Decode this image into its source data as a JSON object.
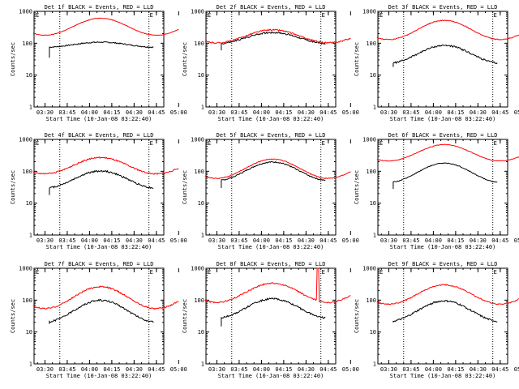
{
  "colors": {
    "events": "#000000",
    "lld": "#ff0000",
    "axis": "#000000",
    "background": "#ffffff"
  },
  "shared": {
    "xlabel": "Start Time (10-Jan-08 03:22:40)",
    "ylabel": "Counts/sec",
    "x_ticks": [
      "03:30",
      "03:45",
      "04:00",
      "04:15",
      "04:30",
      "04:45",
      "05:00"
    ],
    "y_ticks": [
      "1",
      "10",
      "100",
      "1000"
    ],
    "x_range_minutes_after_0330": [
      -7.33,
      80
    ],
    "y_range": [
      1,
      1000
    ],
    "y_scale": "log",
    "marker_text": "E"
  },
  "chart_data": [
    {
      "type": "line",
      "title": "Det 1f BLACK = Events, RED = LLD",
      "corner_marks": [
        "E",
        "E"
      ],
      "dotted_lines_at": [
        "03:40",
        "04:40"
      ],
      "series": [
        {
          "role": "events",
          "start": "03:33",
          "end": "04:43",
          "base": 90,
          "amp": 1.2,
          "phase": 0,
          "start_level": 35,
          "noise": 0.04
        },
        {
          "role": "lld",
          "start": "03:22",
          "end": "05:00",
          "base": 330,
          "amp": 1.85,
          "phase": 0,
          "start_level": 330,
          "noise": 0.02
        }
      ]
    },
    {
      "type": "line",
      "title": "Det 2f BLACK = Events, RED = LLD",
      "corner_marks": [
        "E",
        "E"
      ],
      "dotted_lines_at": [
        "03:40",
        "04:40"
      ],
      "series": [
        {
          "role": "events",
          "start": "03:33",
          "end": "04:43",
          "base": 145,
          "amp": 1.5,
          "phase": 0,
          "start_level": 60,
          "noise": 0.06
        },
        {
          "role": "lld",
          "start": "03:22",
          "end": "05:00",
          "base": 165,
          "amp": 1.6,
          "phase": 0,
          "start_level": 165,
          "noise": 0.05
        }
      ]
    },
    {
      "type": "line",
      "title": "Det 3f BLACK = Events, RED = LLD",
      "corner_marks": [
        "E",
        "E"
      ],
      "dotted_lines_at": [
        "03:40",
        "04:40"
      ],
      "series": [
        {
          "role": "events",
          "start": "03:33",
          "end": "04:43",
          "base": 45,
          "amp": 1.9,
          "phase": 0,
          "start_level": 18,
          "noise": 0.06
        },
        {
          "role": "lld",
          "start": "03:22",
          "end": "05:00",
          "base": 260,
          "amp": 2.0,
          "phase": 0,
          "start_level": 220,
          "noise": 0.03
        }
      ]
    },
    {
      "type": "line",
      "title": "Det 4f BLACK = Events, RED = LLD",
      "corner_marks": [
        "E",
        "E"
      ],
      "dotted_lines_at": [
        "03:40",
        "04:40"
      ],
      "series": [
        {
          "role": "events",
          "start": "03:33",
          "end": "04:43",
          "base": 55,
          "amp": 1.85,
          "phase": 0,
          "start_level": 18,
          "noise": 0.06
        },
        {
          "role": "lld",
          "start": "03:22",
          "end": "05:00",
          "base": 150,
          "amp": 1.8,
          "phase": 0,
          "start_level": 150,
          "noise": 0.05
        }
      ]
    },
    {
      "type": "line",
      "title": "Det 5f BLACK = Events, RED = LLD",
      "corner_marks": [
        "E",
        "E"
      ],
      "dotted_lines_at": [
        "03:40",
        "04:40"
      ],
      "series": [
        {
          "role": "events",
          "start": "03:33",
          "end": "04:43",
          "base": 100,
          "amp": 1.95,
          "phase": 0,
          "start_level": 30,
          "noise": 0.04
        },
        {
          "role": "lld",
          "start": "03:22",
          "end": "05:00",
          "base": 120,
          "amp": 2.0,
          "phase": 0,
          "start_level": 100,
          "noise": 0.03
        }
      ]
    },
    {
      "type": "line",
      "title": "Det 6f BLACK = Events, RED = LLD",
      "corner_marks": [
        "E",
        "E"
      ],
      "dotted_lines_at": [
        "03:40",
        "04:40"
      ],
      "series": [
        {
          "role": "events",
          "start": "03:33",
          "end": "04:43",
          "base": 90,
          "amp": 2.0,
          "phase": 0,
          "start_level": 28,
          "noise": 0.03
        },
        {
          "role": "lld",
          "start": "03:22",
          "end": "05:00",
          "base": 380,
          "amp": 1.8,
          "phase": 0,
          "start_level": 370,
          "noise": 0.02
        }
      ]
    },
    {
      "type": "line",
      "title": "Det 7f BLACK = Events, RED = LLD",
      "corner_marks": [
        "E",
        "E"
      ],
      "dotted_lines_at": [
        "03:40",
        "04:40"
      ],
      "series": [
        {
          "role": "events",
          "start": "03:33",
          "end": "04:43",
          "base": 45,
          "amp": 2.2,
          "phase": 0,
          "start_level": 18,
          "noise": 0.06
        },
        {
          "role": "lld",
          "start": "03:22",
          "end": "05:00",
          "base": 120,
          "amp": 2.2,
          "phase": 0,
          "start_level": 90,
          "noise": 0.05
        }
      ]
    },
    {
      "type": "line",
      "title": "Det 8f BLACK = Events, RED = LLD",
      "corner_marks": [
        "E",
        "E"
      ],
      "dotted_lines_at": [
        "03:40",
        "04:40"
      ],
      "series": [
        {
          "role": "events",
          "start": "03:33",
          "end": "04:43",
          "base": 55,
          "amp": 2.0,
          "phase": 0,
          "start_level": 15,
          "noise": 0.06
        },
        {
          "role": "lld",
          "start": "03:22",
          "end": "05:00",
          "base": 170,
          "amp": 2.0,
          "phase": 0,
          "start_level": 150,
          "noise": 0.05,
          "spike_at": "04:38",
          "spike_value": 1000
        }
      ]
    },
    {
      "type": "line",
      "title": "Det 9f BLACK = Events, RED = LLD",
      "corner_marks": [
        "E",
        "E"
      ],
      "dotted_lines_at": [
        "03:40",
        "04:40"
      ],
      "series": [
        {
          "role": "events",
          "start": "03:33",
          "end": "04:43",
          "base": 45,
          "amp": 2.1,
          "phase": 0,
          "start_level": 20,
          "noise": 0.06
        },
        {
          "role": "lld",
          "start": "03:22",
          "end": "05:00",
          "base": 150,
          "amp": 2.0,
          "phase": 0,
          "start_level": 140,
          "noise": 0.04
        }
      ]
    }
  ]
}
